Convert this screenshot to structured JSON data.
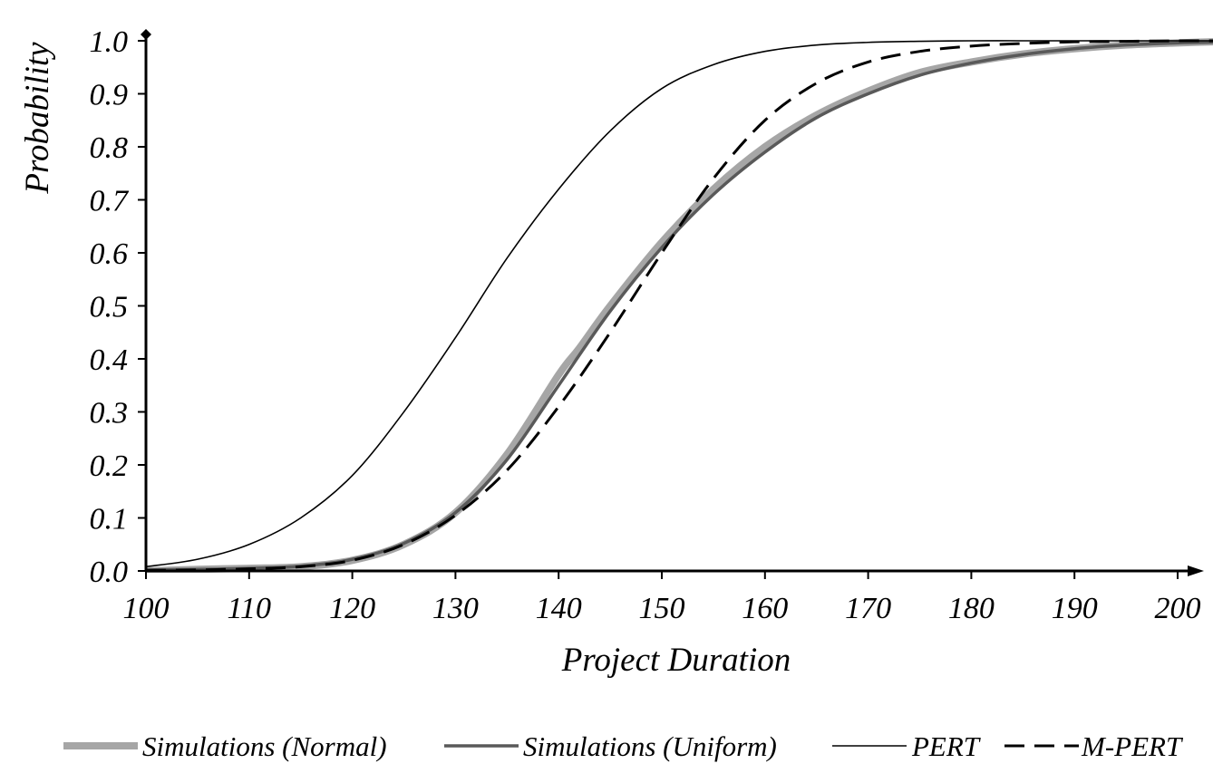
{
  "chart_data": {
    "type": "line",
    "title": "",
    "xlabel": "Project Duration",
    "ylabel": "Probability",
    "xlim": [
      100,
      205
    ],
    "ylim": [
      0,
      1.0
    ],
    "x_ticks": [
      100,
      110,
      120,
      130,
      140,
      150,
      160,
      170,
      180,
      190,
      200
    ],
    "x_tick_labels": [
      "100",
      "110",
      "120",
      "130",
      "140",
      "150",
      "160",
      "170",
      "180",
      "190",
      "200"
    ],
    "y_ticks": [
      0,
      0.1,
      0.2,
      0.3,
      0.4,
      0.5,
      0.6,
      0.7,
      0.8,
      0.9,
      1.0
    ],
    "y_tick_labels": [
      "0.0",
      "0.1",
      "0.2",
      "0.3",
      "0.4",
      "0.5",
      "0.6",
      "0.7",
      "0.8",
      "0.9",
      "1.0"
    ],
    "grid": false,
    "legend_position": "bottom",
    "series": [
      {
        "name": "Simulations (Normal)",
        "color": "#a6a6a6",
        "style": "solid-thick",
        "x": [
          100,
          105,
          110,
          115,
          120,
          125,
          130,
          135,
          140,
          142,
          145,
          150,
          155,
          160,
          165,
          170,
          175,
          180,
          185,
          190,
          195,
          200,
          205
        ],
        "y": [
          0.0,
          0.003,
          0.005,
          0.008,
          0.02,
          0.05,
          0.11,
          0.22,
          0.37,
          0.42,
          0.5,
          0.62,
          0.72,
          0.8,
          0.86,
          0.905,
          0.94,
          0.96,
          0.975,
          0.985,
          0.992,
          0.996,
          0.999
        ]
      },
      {
        "name": "Simulations (Uniform)",
        "color": "#595959",
        "style": "solid-medium",
        "x": [
          100,
          105,
          110,
          115,
          120,
          125,
          130,
          135,
          140,
          145,
          150,
          155,
          160,
          165,
          170,
          175,
          180,
          185,
          190,
          195,
          200,
          205
        ],
        "y": [
          0.002,
          0.003,
          0.005,
          0.009,
          0.022,
          0.052,
          0.11,
          0.21,
          0.35,
          0.49,
          0.61,
          0.71,
          0.79,
          0.855,
          0.9,
          0.935,
          0.958,
          0.974,
          0.985,
          0.992,
          0.996,
          0.998
        ]
      },
      {
        "name": "PERT",
        "color": "#000000",
        "style": "solid-thin",
        "x": [
          100,
          105,
          110,
          115,
          120,
          125,
          130,
          135,
          140,
          145,
          150,
          155,
          160,
          165,
          170,
          175,
          180,
          185,
          190,
          195,
          200,
          205
        ],
        "y": [
          0.008,
          0.022,
          0.05,
          0.1,
          0.18,
          0.3,
          0.44,
          0.59,
          0.72,
          0.83,
          0.91,
          0.955,
          0.98,
          0.992,
          0.997,
          0.999,
          1.0,
          1.0,
          1.0,
          1.0,
          1.0,
          1.0
        ]
      },
      {
        "name": "M-PERT",
        "color": "#000000",
        "style": "dashed",
        "x": [
          100,
          105,
          110,
          115,
          120,
          125,
          130,
          135,
          140,
          145,
          150,
          155,
          160,
          165,
          170,
          175,
          180,
          185,
          190,
          195,
          200,
          205
        ],
        "y": [
          0.001,
          0.002,
          0.004,
          0.008,
          0.02,
          0.05,
          0.105,
          0.19,
          0.31,
          0.45,
          0.6,
          0.74,
          0.85,
          0.92,
          0.96,
          0.98,
          0.99,
          0.995,
          0.998,
          0.999,
          1.0,
          1.0
        ]
      }
    ]
  }
}
